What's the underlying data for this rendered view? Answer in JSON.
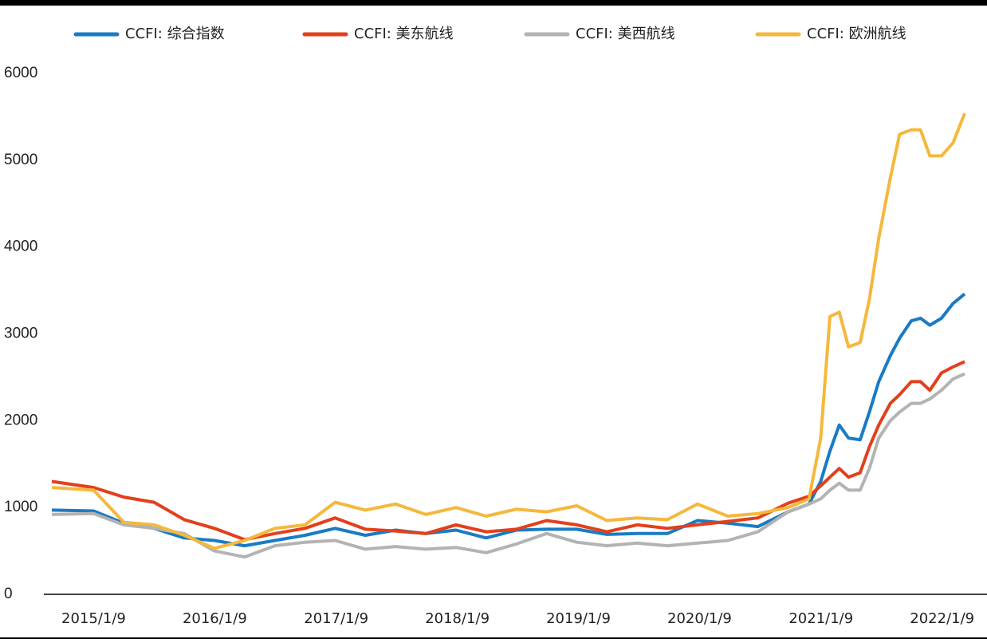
{
  "chart_data": {
    "type": "line",
    "x": [
      "2014/9/5",
      "2015/1/9",
      "2015/4/10",
      "2015/7/10",
      "2015/10/9",
      "2016/1/8",
      "2016/4/8",
      "2016/7/8",
      "2016/10/7",
      "2017/1/6",
      "2017/4/7",
      "2017/7/7",
      "2017/10/6",
      "2018/1/5",
      "2018/4/6",
      "2018/7/6",
      "2018/10/5",
      "2019/1/4",
      "2019/4/5",
      "2019/7/5",
      "2019/10/4",
      "2020/1/3",
      "2020/4/3",
      "2020/7/3",
      "2020/10/2",
      "2020/12/4",
      "2021/1/8",
      "2021/2/5",
      "2021/3/5",
      "2021/4/2",
      "2021/5/7",
      "2021/6/4",
      "2021/7/2",
      "2021/8/6",
      "2021/9/3",
      "2021/10/8",
      "2021/11/5",
      "2021/12/3",
      "2022/1/7",
      "2022/2/11",
      "2022/3/18"
    ],
    "series": [
      {
        "name": "CCFI: 综合指数",
        "color": "#1a7bc4",
        "values": [
          970,
          960,
          820,
          760,
          650,
          620,
          560,
          620,
          680,
          760,
          680,
          740,
          700,
          740,
          650,
          740,
          750,
          750,
          690,
          700,
          700,
          850,
          820,
          780,
          950,
          1040,
          1300,
          1650,
          1950,
          1800,
          1780,
          2100,
          2450,
          2750,
          2950,
          3150,
          3180,
          3100,
          3180,
          3350,
          3460
        ]
      },
      {
        "name": "CCFI: 美东航线",
        "color": "#e2401c",
        "values": [
          1300,
          1230,
          1120,
          1060,
          860,
          760,
          630,
          700,
          760,
          880,
          750,
          730,
          700,
          800,
          720,
          750,
          850,
          800,
          720,
          800,
          760,
          800,
          840,
          880,
          1050,
          1130,
          1250,
          1350,
          1450,
          1350,
          1400,
          1700,
          1950,
          2200,
          2300,
          2450,
          2450,
          2350,
          2550,
          2620,
          2680
        ]
      },
      {
        "name": "CCFI: 美西航线",
        "color": "#b3b3b3",
        "values": [
          920,
          930,
          800,
          760,
          700,
          500,
          430,
          560,
          600,
          620,
          520,
          550,
          520,
          540,
          480,
          580,
          700,
          600,
          560,
          590,
          560,
          590,
          620,
          720,
          950,
          1040,
          1100,
          1200,
          1280,
          1200,
          1200,
          1450,
          1800,
          2000,
          2100,
          2200,
          2200,
          2250,
          2350,
          2480,
          2540
        ]
      },
      {
        "name": "CCFI: 欧洲航线",
        "color": "#f5b83d",
        "values": [
          1230,
          1200,
          830,
          800,
          680,
          530,
          620,
          760,
          800,
          1060,
          970,
          1040,
          920,
          1000,
          900,
          980,
          950,
          1020,
          850,
          880,
          860,
          1040,
          900,
          930,
          1000,
          1100,
          1800,
          3200,
          3250,
          2850,
          2900,
          3400,
          4100,
          4800,
          5300,
          5350,
          5350,
          5050,
          5050,
          5200,
          5540
        ]
      }
    ],
    "xlim": [
      "2014/9/5",
      "2022/3/18"
    ],
    "xticks": [
      "2015/1/9",
      "2016/1/9",
      "2017/1/9",
      "2018/1/9",
      "2019/1/9",
      "2020/1/9",
      "2021/1/9",
      "2022/1/9"
    ],
    "ylim": [
      0,
      6000
    ],
    "yticks": [
      0,
      1000,
      2000,
      3000,
      4000,
      5000,
      6000
    ],
    "grid": false
  }
}
